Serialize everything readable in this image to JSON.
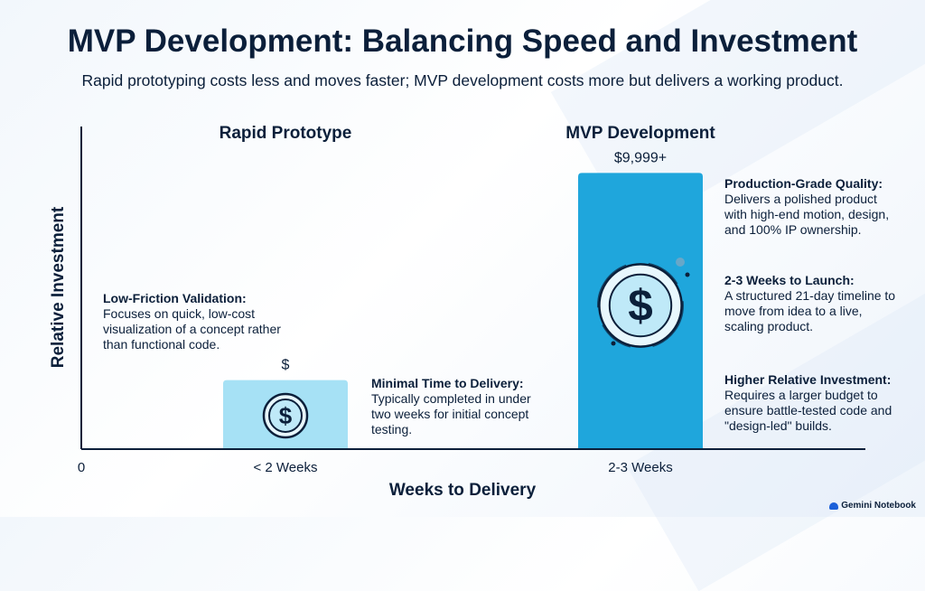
{
  "title": "MVP Development: Balancing Speed and Investment",
  "subtitle": "Rapid prototyping costs less and moves faster; MVP development costs more but delivers a working product.",
  "chart_data": {
    "type": "bar",
    "categories": [
      "< 2 Weeks",
      "2-3 Weeks"
    ],
    "column_titles": [
      "Rapid Prototype",
      "MVP Development"
    ],
    "values": [
      1,
      4
    ],
    "data_labels": [
      "$",
      "$9,999+"
    ],
    "xlabel": "Weeks to Delivery",
    "ylabel": "Relative Investment",
    "origin_label": "0",
    "ylim": [
      0,
      5
    ],
    "grid": false,
    "colors": {
      "prototype_bar": "#a6e1f5",
      "mvp_bar": "#1fa6dc",
      "axis": "#0b1f3a"
    }
  },
  "annotations": {
    "low_friction": {
      "heading": "Low-Friction Validation:",
      "body": "Focuses on quick, low-cost visualization of a concept rather than functional code."
    },
    "minimal_time": {
      "heading": "Minimal Time to Delivery:",
      "body": "Typically completed in under two weeks for initial concept testing."
    },
    "production_grade": {
      "heading": "Production-Grade Quality:",
      "body": "Delivers a polished product with high-end motion, design, and 100% IP ownership."
    },
    "weeks_to_launch": {
      "heading": "2-3 Weeks to Launch:",
      "body": "A structured 21-day timeline to move from idea to a live, scaling product."
    },
    "higher_investment": {
      "heading": "Higher Relative Investment:",
      "body": "Requires a larger budget to ensure battle-tested code and \"design-led\" builds."
    }
  },
  "icons": {
    "bar_icon": "dollar-coin-icon",
    "brand_icon": "gemini-notebook-icon"
  },
  "brand": "Gemini Notebook"
}
